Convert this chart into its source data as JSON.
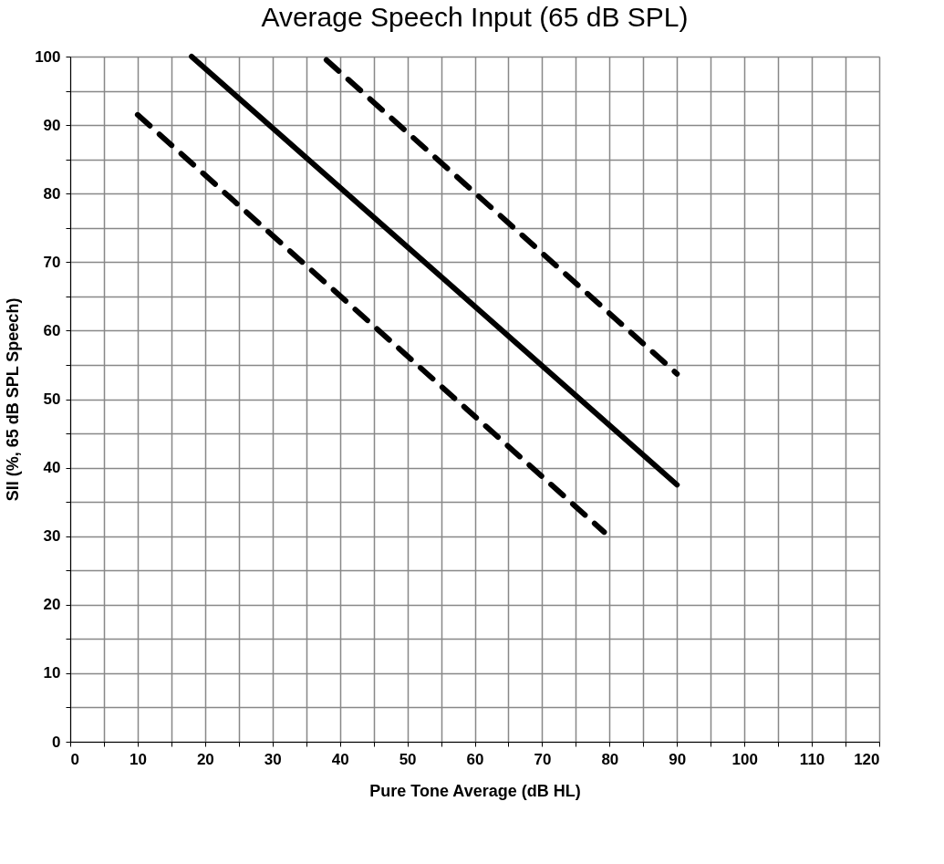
{
  "chart_data": {
    "type": "line",
    "title": "Average Speech Input (65 dB SPL)",
    "xlabel": "Pure Tone Average (dB HL)",
    "ylabel": "SII (%, 65 dB SPL Speech)",
    "xlim": [
      0,
      120
    ],
    "ylim": [
      0,
      100
    ],
    "xticks": [
      0,
      {
        "value": 5,
        "label": null
      },
      10,
      {
        "value": 15,
        "label": null
      },
      20,
      {
        "value": 25,
        "label": null
      },
      30,
      {
        "value": 35,
        "label": null
      },
      40,
      {
        "value": 45,
        "label": null
      },
      50,
      {
        "value": 55,
        "label": null
      },
      60,
      {
        "value": 65,
        "label": null
      },
      70,
      {
        "value": 75,
        "label": null
      },
      80,
      {
        "value": 85,
        "label": null
      },
      90,
      {
        "value": 95,
        "label": null
      },
      100,
      {
        "value": 105,
        "label": null
      },
      110,
      {
        "value": 115,
        "label": null
      },
      120
    ],
    "yticks": [
      0,
      {
        "value": 5,
        "label": null
      },
      10,
      {
        "value": 15,
        "label": null
      },
      20,
      {
        "value": 25,
        "label": null
      },
      30,
      {
        "value": 35,
        "label": null
      },
      40,
      {
        "value": 45,
        "label": null
      },
      50,
      {
        "value": 55,
        "label": null
      },
      60,
      {
        "value": 65,
        "label": null
      },
      70,
      {
        "value": 75,
        "label": null
      },
      80,
      {
        "value": 85,
        "label": null
      },
      90,
      {
        "value": 95,
        "label": null
      },
      100
    ],
    "grid": true,
    "marker": "none",
    "series": [
      {
        "color": "#000000",
        "line_style": "solid",
        "x": [
          18,
          90
        ],
        "values": [
          100,
          37.5
        ]
      },
      {
        "color": "#000000",
        "line_style": "dashed",
        "x": [
          38,
          90
        ],
        "values": [
          99.5,
          53.7
        ]
      },
      {
        "color": "#000000",
        "line_style": "dashed",
        "x": [
          10,
          79.2
        ],
        "values": [
          91.5,
          30.6
        ]
      }
    ]
  }
}
